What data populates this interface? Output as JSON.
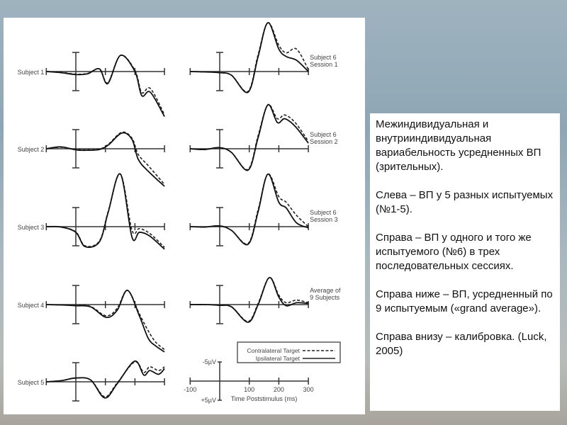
{
  "chart_data": {
    "type": "line",
    "xlabel": "Time Poststimulus (ms)",
    "x_ticks": [
      "-100",
      "100",
      "200",
      "300"
    ],
    "xlim": [
      -100,
      300
    ],
    "y_calibration": {
      "top": "-5µV",
      "bottom": "+5µV"
    },
    "note": "negative up",
    "legend": [
      {
        "name": "Contralateral Target",
        "style": "dashed"
      },
      {
        "name": "Ipsilateral Target",
        "style": "solid"
      }
    ],
    "panels": [
      {
        "label": [
          "Subject 1"
        ],
        "t": [
          -100,
          -50,
          0,
          40,
          80,
          108,
          151,
          200,
          223,
          252,
          300
        ],
        "ipsi": [
          0,
          0.3,
          0.8,
          0.6,
          -0.7,
          3.2,
          -4.3,
          0,
          6.4,
          5.5,
          12
        ],
        "contra": [
          0,
          0.2,
          0.7,
          0.5,
          -0.7,
          3.0,
          -4.3,
          -0.3,
          5.6,
          4.5,
          11.5
        ]
      },
      {
        "label": [
          "Subject 2"
        ],
        "t": [
          -100,
          -50,
          0,
          40,
          80,
          110,
          156,
          190,
          211,
          245,
          300
        ],
        "ipsi": [
          0,
          -0.5,
          0.3,
          0.4,
          0.2,
          -1,
          -4.2,
          -2.5,
          2.8,
          6,
          10
        ],
        "contra": [
          0,
          -0.4,
          0.2,
          0.3,
          0.1,
          -1.2,
          -4.4,
          -2.8,
          1.5,
          4.5,
          9.5
        ]
      },
      {
        "label": [
          "Subject 3"
        ],
        "t": [
          -100,
          -50,
          0,
          31,
          80,
          110,
          151,
          190,
          215,
          250,
          300
        ],
        "ipsi": [
          0,
          0.1,
          1.5,
          5.3,
          4,
          -4,
          -14,
          2.8,
          1.5,
          2.5,
          6
        ],
        "contra": [
          0,
          0.1,
          1.4,
          5.1,
          3.8,
          -4.2,
          -14,
          1,
          0.5,
          1.8,
          5.5
        ]
      },
      {
        "label": [
          "Subject 4"
        ],
        "t": [
          -100,
          -50,
          0,
          50,
          103,
          140,
          175,
          215,
          245,
          270,
          300
        ],
        "ipsi": [
          0,
          0.1,
          0.3,
          0.6,
          3.4,
          1.5,
          -3.8,
          3,
          9,
          11,
          12.6
        ],
        "contra": [
          0,
          0.1,
          0.2,
          0.5,
          3.0,
          1.0,
          -3.8,
          2.5,
          7,
          10,
          12
        ]
      },
      {
        "label": [
          "Subject 5"
        ],
        "t": [
          -100,
          -50,
          0,
          50,
          98,
          140,
          199,
          230,
          250,
          280,
          300
        ],
        "ipsi": [
          0,
          -0.3,
          -1,
          -0.5,
          4.3,
          0.5,
          -5.5,
          -1.8,
          -3,
          -2,
          -3.5
        ],
        "contra": [
          0,
          -0.3,
          -1,
          -0.5,
          4.0,
          0.3,
          -5.3,
          -2.5,
          -4,
          -3,
          -4
        ]
      },
      {
        "label": [
          "Subject 6",
          "Session 1"
        ],
        "t": [
          -100,
          -50,
          0,
          40,
          96,
          130,
          163,
          200,
          225,
          260,
          300
        ],
        "ipsi": [
          0,
          0.1,
          0.3,
          1,
          5.5,
          -4,
          -13,
          -6,
          -4,
          -3,
          0
        ],
        "contra": [
          0,
          0.1,
          0.3,
          1,
          5.3,
          -4.5,
          -13,
          -7,
          -5,
          -6,
          -0.5
        ]
      },
      {
        "label": [
          "Subject 6",
          "Session 2"
        ],
        "t": [
          -100,
          -50,
          0,
          40,
          96,
          130,
          163,
          195,
          220,
          255,
          300
        ],
        "ipsi": [
          0,
          0.2,
          -0.3,
          1,
          5.7,
          -3,
          -11.7,
          -7,
          -8,
          -6,
          -1.5
        ],
        "contra": [
          0,
          0.2,
          -0.3,
          1,
          5.5,
          -3.5,
          -11.7,
          -8,
          -9,
          -7,
          -2
        ]
      },
      {
        "label": [
          "Subject 6",
          "Session 3"
        ],
        "t": [
          -100,
          -50,
          0,
          40,
          96,
          130,
          163,
          200,
          225,
          260,
          300
        ],
        "ipsi": [
          0,
          0.1,
          -0.2,
          1,
          4.7,
          -4,
          -14,
          -6.5,
          -5,
          -1,
          0.3
        ],
        "contra": [
          0,
          0.1,
          -0.2,
          1,
          4.5,
          -4.5,
          -14,
          -8,
          -6.5,
          -3,
          0
        ]
      },
      {
        "label": [
          "Average of",
          "9 Subjects"
        ],
        "t": [
          -100,
          -50,
          0,
          40,
          96,
          130,
          168,
          200,
          225,
          260,
          300
        ],
        "ipsi": [
          0,
          0,
          0.2,
          0.6,
          4.7,
          0,
          -7.2,
          -2,
          0.3,
          -0.5,
          -0.3
        ],
        "contra": [
          0,
          0,
          0.2,
          0.6,
          4.5,
          -0.3,
          -7.2,
          -2.5,
          -0.5,
          -1.2,
          -0.5
        ]
      }
    ]
  },
  "text": {
    "p1": "Межиндивидуальная и внутрииндивидуальная вариабельность усредненных ВП (зрительных).",
    "p2": "Слева – ВП у 5 разных испытуемых (№1-5).",
    "p3": "Справа – ВП у одного и того же испытуемого (№6) в трех последовательных сессиях.",
    "p4": "Справа ниже – ВП, усредненный по 9 испытуемым («grand average»).",
    "p5": "Справа внизу – калибровка. (Luck, 2005)"
  }
}
